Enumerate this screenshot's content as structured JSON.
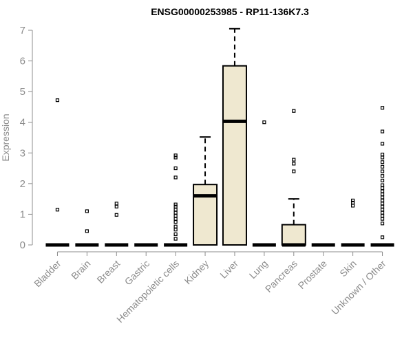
{
  "chart_data": {
    "type": "box",
    "title": "ENSG00000253985 - RP11-136K7.3",
    "ylabel": "Expression",
    "xlabel": "",
    "ylim": [
      0,
      7
    ],
    "yticks": [
      0,
      1,
      2,
      3,
      4,
      5,
      6,
      7
    ],
    "box_fill": "#efe8d0",
    "box_stroke": "#000000",
    "axis_color": "#8c8c8c",
    "categories": [
      "Bladder",
      "Brain",
      "Breast",
      "Gastric",
      "Hematopoietic cells",
      "Kidney",
      "Liver",
      "Lung",
      "Pancreas",
      "Prostate",
      "Skin",
      "Unknown / Other"
    ],
    "boxes": [
      {
        "q1": 0,
        "median": 0,
        "q3": 0,
        "whisker_low": 0,
        "whisker_high": 0,
        "outliers": [
          1.15,
          4.72
        ]
      },
      {
        "q1": 0,
        "median": 0,
        "q3": 0,
        "whisker_low": 0,
        "whisker_high": 0,
        "outliers": [
          0.45,
          1.1
        ]
      },
      {
        "q1": 0,
        "median": 0,
        "q3": 0,
        "whisker_low": 0,
        "whisker_high": 0,
        "outliers": [
          0.98,
          1.25,
          1.35
        ]
      },
      {
        "q1": 0,
        "median": 0,
        "q3": 0,
        "whisker_low": 0,
        "whisker_high": 0,
        "outliers": []
      },
      {
        "q1": 0,
        "median": 0,
        "q3": 0,
        "whisker_low": 0,
        "whisker_high": 0,
        "outliers": [
          0.2,
          0.35,
          0.5,
          0.6,
          0.75,
          0.85,
          0.95,
          1.05,
          1.15,
          1.25,
          1.32,
          2.2,
          2.5,
          2.85,
          2.92
        ]
      },
      {
        "q1": 0,
        "median": 1.6,
        "q3": 1.97,
        "whisker_low": 0,
        "whisker_high": 3.52,
        "outliers": []
      },
      {
        "q1": 0,
        "median": 4.03,
        "q3": 5.84,
        "whisker_low": 0,
        "whisker_high": 7.05,
        "outliers": []
      },
      {
        "q1": 0,
        "median": 0,
        "q3": 0,
        "whisker_low": 0,
        "whisker_high": 0,
        "outliers": [
          4.0
        ]
      },
      {
        "q1": 0,
        "median": 0,
        "q3": 0.66,
        "whisker_low": 0,
        "whisker_high": 1.5,
        "outliers": [
          2.4,
          2.65,
          2.78,
          4.37
        ]
      },
      {
        "q1": 0,
        "median": 0,
        "q3": 0,
        "whisker_low": 0,
        "whisker_high": 0,
        "outliers": []
      },
      {
        "q1": 0,
        "median": 0,
        "q3": 0,
        "whisker_low": 0,
        "whisker_high": 0,
        "outliers": [
          1.28,
          1.38,
          1.45
        ]
      },
      {
        "q1": 0,
        "median": 0,
        "q3": 0,
        "whisker_low": 0,
        "whisker_high": 0,
        "outliers": [
          0.25,
          0.7,
          0.85,
          0.95,
          1.05,
          1.15,
          1.25,
          1.35,
          1.45,
          1.55,
          1.65,
          1.75,
          1.85,
          1.95,
          2.1,
          2.25,
          2.4,
          2.55,
          2.7,
          2.85,
          2.95,
          3.3,
          3.7,
          4.47
        ]
      }
    ]
  }
}
